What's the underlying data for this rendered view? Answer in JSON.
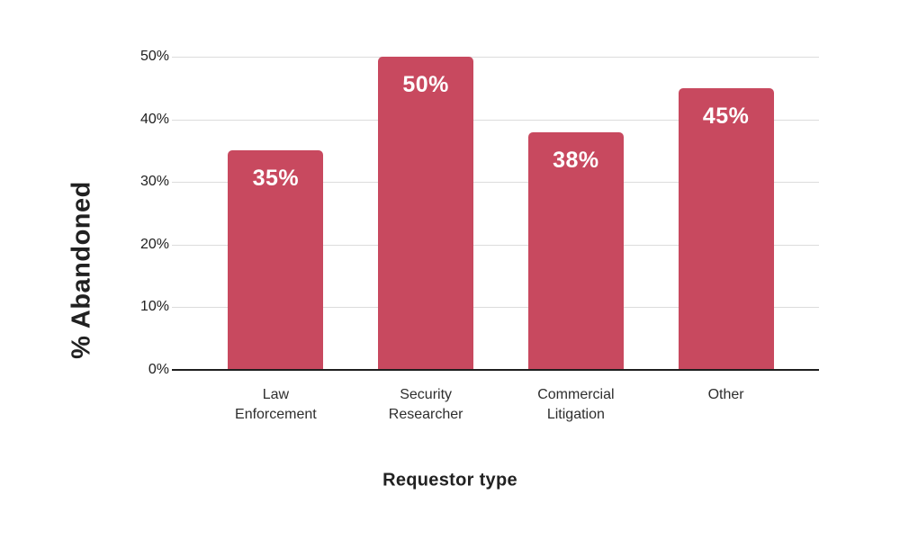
{
  "chart_data": {
    "type": "bar",
    "title": "",
    "xlabel": "Requestor type",
    "ylabel": "% Abandoned",
    "categories": [
      "Law Enforcement",
      "Security Researcher",
      "Commercial Litigation",
      "Other"
    ],
    "values": [
      35,
      50,
      38,
      45
    ],
    "value_labels": [
      "35%",
      "50%",
      "38%",
      "45%"
    ],
    "ylim": [
      0,
      50
    ],
    "yticks": [
      0,
      10,
      20,
      30,
      40,
      50
    ],
    "ytick_labels": [
      "0%",
      "10%",
      "20%",
      "30%",
      "40%",
      "50%"
    ],
    "grid": "horizontal",
    "legend": "none",
    "bar_color": "#C8495F",
    "value_label_color": "#FFFFFF",
    "gridline_color": "#DCDCDC",
    "axis_line_color": "#1F1F1F",
    "text_color": "#212121"
  }
}
